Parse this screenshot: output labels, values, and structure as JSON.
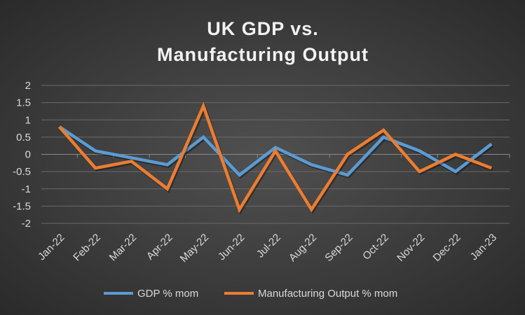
{
  "chart_data": {
    "type": "line",
    "title": [
      "UK GDP vs.",
      "Manufacturing Output"
    ],
    "xlabel": "",
    "ylabel": "",
    "categories": [
      "Jan-22",
      "Feb-22",
      "Mar-22",
      "Apr-22",
      "May-22",
      "Jun-22",
      "Jul-22",
      "Aug-22",
      "Sep-22",
      "Oct-22",
      "Nov-22",
      "Dec-22",
      "Jan-23"
    ],
    "ylim": [
      -2,
      2
    ],
    "yticks": [
      2,
      1.5,
      1,
      0.5,
      0,
      -0.5,
      -1,
      -1.5,
      -2
    ],
    "grid": true,
    "legend_position": "bottom",
    "series": [
      {
        "name": "GDP % mom",
        "color": "#5b9bd5",
        "values": [
          0.8,
          0.1,
          -0.1,
          -0.3,
          0.5,
          -0.6,
          0.2,
          -0.3,
          -0.6,
          0.5,
          0.1,
          -0.5,
          0.3
        ]
      },
      {
        "name": "Manufacturing Output % mom",
        "color": "#ed7d31",
        "values": [
          0.8,
          -0.4,
          -0.2,
          -1.0,
          1.4,
          -1.6,
          0.1,
          -1.6,
          0.0,
          0.7,
          -0.5,
          0.0,
          -0.4
        ]
      }
    ]
  }
}
